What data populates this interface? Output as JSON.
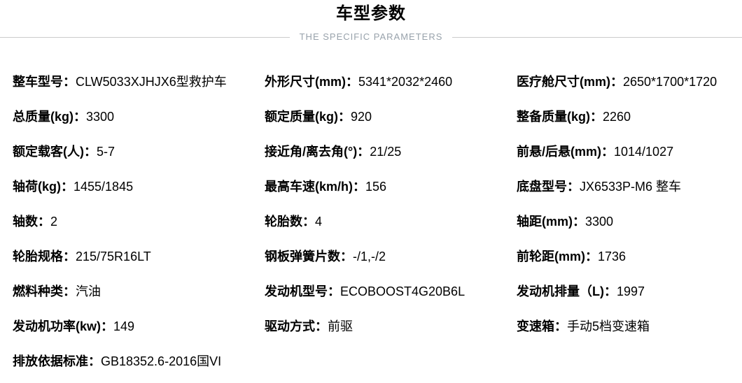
{
  "header": {
    "title": "车型参数",
    "subtitle": "THE SPECIFIC PARAMETERS"
  },
  "divider_color": "#cccccc",
  "columns": [
    {
      "items": [
        {
          "label": "整车型号：",
          "value": "CLW5033XJHJX6型救护车"
        },
        {
          "label": "总质量(kg)：",
          "value": "3300"
        },
        {
          "label": "额定载客(人)：",
          "value": "5-7"
        },
        {
          "label": "轴荷(kg)：",
          "value": "1455/1845"
        },
        {
          "label": "轴数：",
          "value": "2"
        },
        {
          "label": "轮胎规格：",
          "value": "215/75R16LT"
        },
        {
          "label": "燃料种类：",
          "value": "汽油"
        },
        {
          "label": "发动机功率(kw)：",
          "value": "149"
        },
        {
          "label": "排放依据标准：",
          "value": "GB18352.6-2016国VI"
        }
      ]
    },
    {
      "items": [
        {
          "label": "外形尺寸(mm)：",
          "value": "5341*2032*2460"
        },
        {
          "label": "额定质量(kg)：",
          "value": "920"
        },
        {
          "label": "接近角/离去角(°)：",
          "value": "21/25"
        },
        {
          "label": "最高车速(km/h)：",
          "value": "156"
        },
        {
          "label": "轮胎数：",
          "value": "4"
        },
        {
          "label": "钢板弹簧片数：",
          "value": "-/1,-/2"
        },
        {
          "label": "发动机型号：",
          "value": "ECOBOOST4G20B6L"
        },
        {
          "label": "驱动方式：",
          "value": "前驱"
        }
      ]
    },
    {
      "items": [
        {
          "label": "医疗舱尺寸(mm)：",
          "value": "2650*1700*1720"
        },
        {
          "label": "整备质量(kg)：",
          "value": "2260"
        },
        {
          "label": "前悬/后悬(mm)：",
          "value": "1014/1027"
        },
        {
          "label": "底盘型号：",
          "value": "JX6533P-M6 整车"
        },
        {
          "label": "轴距(mm)：",
          "value": "3300"
        },
        {
          "label": "前轮距(mm)：",
          "value": "1736"
        },
        {
          "label": "发动机排量（L)：",
          "value": "1997"
        },
        {
          "label": "变速箱：",
          "value": "手动5档变速箱"
        }
      ]
    }
  ]
}
